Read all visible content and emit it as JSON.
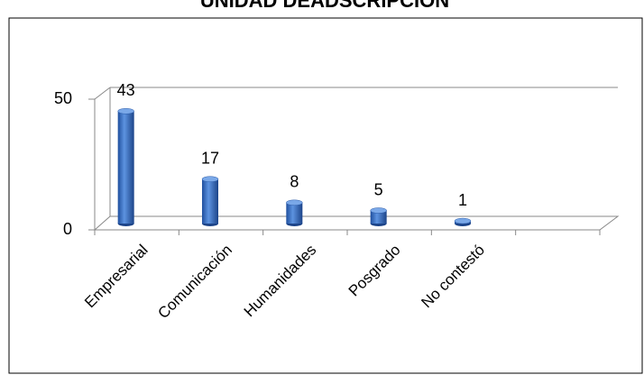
{
  "chart_data": {
    "type": "bar3d",
    "title": "UNIDAD DEADSCRIPCIÓN",
    "categories": [
      "Empresarial",
      "Comunicación",
      "Humanidades",
      "Posgrado",
      "No contestó",
      null
    ],
    "values": [
      43,
      17,
      8,
      5,
      1,
      null
    ],
    "color": "#3a6fc4",
    "ylim": [
      0,
      50
    ],
    "yticks": [
      0,
      50
    ],
    "grid": false
  }
}
